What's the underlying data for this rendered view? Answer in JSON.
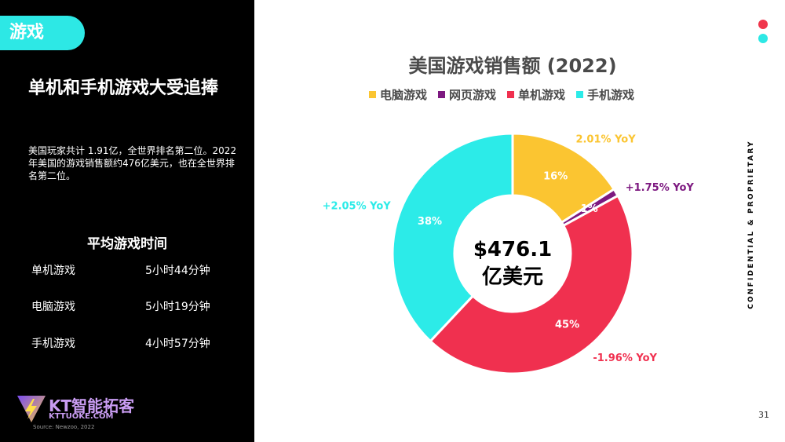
{
  "left_panel": {
    "tag": "游戏",
    "headline": "单机和手机游戏大受追捧",
    "body": "美国玩家共计 1.91亿，全世界排名第二位。2022年美国的游戏销售额约476亿美元，也在全世界排名第二位。",
    "avg_title": "平均游戏时间",
    "avg_rows": [
      {
        "label": "单机游戏",
        "value": "5小时44分钟"
      },
      {
        "label": "电脑游戏",
        "value": "5小时19分钟"
      },
      {
        "label": "手机游戏",
        "value": "4小时57分钟"
      }
    ],
    "logo_text": "KT智能拓客",
    "logo_sub": "KTTUOKE.COM",
    "source": "Source: Newzoo, 2022"
  },
  "side_label": "CONFIDENTIAL & PROPRIETARY",
  "page_number": "31",
  "dots": [
    "#f0364c",
    "#2de8e5"
  ],
  "chart_data": {
    "type": "pie",
    "title": "美国游戏销售额 (2022)",
    "center_label": [
      "$476.1",
      "亿美元"
    ],
    "categories": [
      "电脑游戏",
      "网页游戏",
      "单机游戏",
      "手机游戏"
    ],
    "values": [
      16,
      1,
      45,
      38
    ],
    "value_labels": [
      "16%",
      "1%",
      "45%",
      "38%"
    ],
    "yoy_labels": [
      "2.01% YoY",
      "+1.75% YoY",
      "-1.96% YoY",
      "+2.05% YoY"
    ],
    "colors": [
      "#fbc531",
      "#7d1980",
      "#f0304f",
      "#2cebe8"
    ],
    "legend_placement": "top",
    "donut": true
  }
}
